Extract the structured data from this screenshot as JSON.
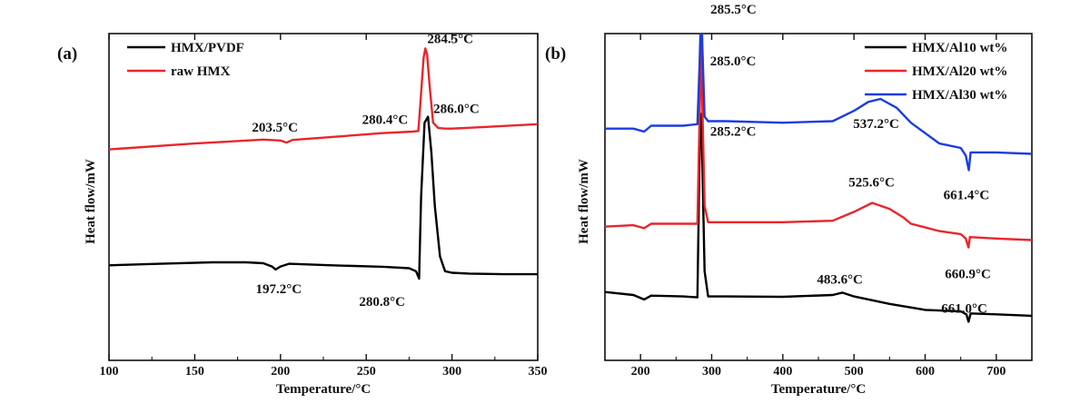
{
  "chart_data": [
    {
      "panel_label": "(a)",
      "type": "line",
      "xlabel": "Temperature/°C",
      "ylabel": "Heat flow/mW",
      "xlim": [
        100,
        350
      ],
      "ylim": [
        -10,
        100
      ],
      "xticks": [
        100,
        150,
        200,
        250,
        300,
        350
      ],
      "grid": false,
      "legend_position": "top-left",
      "series": [
        {
          "name": "HMX/PVDF",
          "color": "#000000",
          "x": [
            100,
            130,
            160,
            180,
            190,
            195,
            197.2,
            200,
            205,
            230,
            260,
            275,
            279,
            280.8,
            282,
            284,
            286,
            288,
            290,
            293,
            296,
            300,
            310,
            330,
            350
          ],
          "y": [
            22,
            22.5,
            23,
            23,
            22.7,
            21.6,
            20.6,
            21.6,
            22.5,
            22,
            21.5,
            21,
            20,
            17.5,
            45,
            70,
            72,
            60,
            42,
            25,
            20,
            19.5,
            19.2,
            19,
            19
          ]
        },
        {
          "name": "raw HMX",
          "color": "#e8262b",
          "x": [
            100,
            150,
            190,
            200,
            203.5,
            207,
            230,
            260,
            277,
            280.4,
            282,
            283.5,
            284.5,
            285.5,
            287,
            289,
            292,
            296,
            300,
            320,
            350
          ],
          "y": [
            61,
            63,
            64.3,
            64,
            63.3,
            64.2,
            65.2,
            66.5,
            67,
            67.2,
            80,
            92,
            95,
            93,
            82,
            70,
            68.2,
            68,
            68,
            68.6,
            69.5
          ]
        }
      ],
      "annotations": [
        {
          "text": "284.5°C",
          "x": 284.5,
          "series": "raw HMX"
        },
        {
          "text": "203.5°C",
          "x": 203.5,
          "series": "raw HMX"
        },
        {
          "text": "280.4°C",
          "x": 280.4,
          "series": "raw HMX"
        },
        {
          "text": "286.0°C",
          "x": 286.0,
          "series": "HMX/PVDF"
        },
        {
          "text": "197.2°C",
          "x": 197.2,
          "series": "HMX/PVDF"
        },
        {
          "text": "280.8°C",
          "x": 280.8,
          "series": "HMX/PVDF"
        }
      ]
    },
    {
      "panel_label": "(b)",
      "type": "line",
      "xlabel": "Temperature/°C",
      "ylabel": "Heat flow/mW",
      "xlim": [
        150,
        750
      ],
      "ylim": [
        -10,
        100
      ],
      "xticks": [
        200,
        300,
        400,
        500,
        600,
        700
      ],
      "grid": false,
      "legend_position": "top-right",
      "series": [
        {
          "name": "HMX/Al10 wt%",
          "color": "#000000",
          "x": [
            150,
            190,
            205,
            215,
            260,
            280,
            283,
            285.2,
            287,
            290,
            295,
            320,
            400,
            470,
            483.6,
            500,
            550,
            600,
            650,
            658,
            661.0,
            664,
            700,
            750
          ],
          "y": [
            13,
            12,
            10.5,
            11.8,
            11.5,
            11.2,
            60,
            73,
            55,
            20,
            11.5,
            11.5,
            11.4,
            12,
            12.8,
            11.5,
            9,
            7,
            6.5,
            5.5,
            3,
            5.8,
            5.5,
            5
          ]
        },
        {
          "name": "HMX/Al20 wt%",
          "color": "#e8262b",
          "x": [
            150,
            190,
            205,
            215,
            260,
            280,
            283,
            285.0,
            287,
            290,
            295,
            320,
            400,
            470,
            500,
            525.6,
            550,
            570,
            580,
            620,
            650,
            657,
            660.9,
            663,
            700,
            750
          ],
          "y": [
            35,
            35.5,
            34.5,
            36,
            36,
            36,
            72,
            96,
            75,
            42,
            36.5,
            36.5,
            36.5,
            37,
            40,
            43,
            41,
            38,
            36,
            33.5,
            32.5,
            31,
            28,
            31.5,
            31,
            30.5
          ]
        },
        {
          "name": "HMX/Al30 wt%",
          "color": "#1c3ce0",
          "x": [
            150,
            190,
            205,
            215,
            260,
            280,
            283,
            285.5,
            287,
            290,
            295,
            320,
            400,
            470,
            500,
            520,
            537.2,
            560,
            580,
            620,
            650,
            657,
            661.4,
            664,
            700,
            750
          ],
          "y": [
            68,
            68,
            67,
            69,
            69,
            69.5,
            90,
            111,
            95,
            72,
            70.5,
            70.5,
            70,
            70.5,
            74,
            77,
            78,
            75,
            70,
            63,
            61.5,
            59,
            54,
            60,
            60,
            59.5
          ]
        }
      ],
      "annotations": [
        {
          "text": "285.5°C",
          "x": 285.5,
          "series": "HMX/Al30 wt%"
        },
        {
          "text": "537.2°C",
          "x": 537.2,
          "series": "HMX/Al30 wt%"
        },
        {
          "text": "661.4°C",
          "x": 661.4,
          "series": "HMX/Al30 wt%"
        },
        {
          "text": "285.0°C",
          "x": 285.0,
          "series": "HMX/Al20 wt%"
        },
        {
          "text": "525.6°C",
          "x": 525.6,
          "series": "HMX/Al20 wt%"
        },
        {
          "text": "660.9°C",
          "x": 660.9,
          "series": "HMX/Al20 wt%"
        },
        {
          "text": "285.2°C",
          "x": 285.2,
          "series": "HMX/Al10 wt%"
        },
        {
          "text": "483.6°C",
          "x": 483.6,
          "series": "HMX/Al10 wt%"
        },
        {
          "text": "661.0°C",
          "x": 661.0,
          "series": "HMX/Al10 wt%"
        }
      ]
    }
  ]
}
